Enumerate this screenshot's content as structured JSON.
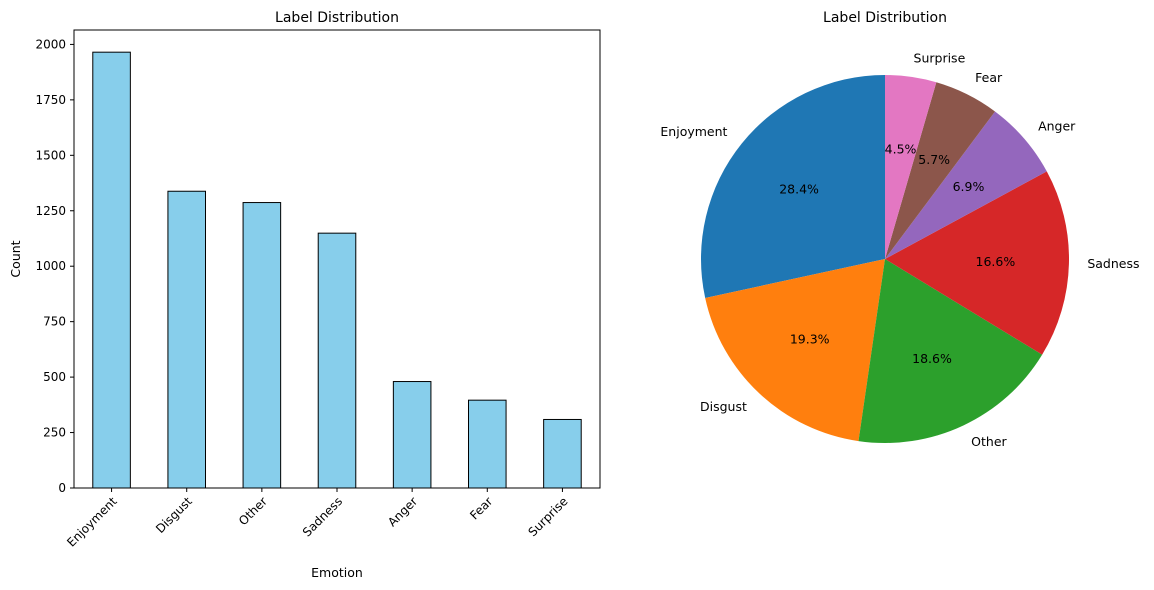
{
  "chart_data": [
    {
      "type": "bar",
      "title": "Label Distribution",
      "xlabel": "Emotion",
      "ylabel": "Count",
      "categories": [
        "Enjoyment",
        "Disgust",
        "Other",
        "Sadness",
        "Anger",
        "Fear",
        "Surprise"
      ],
      "values": [
        1965,
        1338,
        1287,
        1149,
        480,
        396,
        309
      ],
      "ylim": [
        0,
        2065
      ],
      "yticks": [
        0,
        250,
        500,
        750,
        1000,
        1250,
        1500,
        1750,
        2000
      ],
      "bar_color": "#87CEEB",
      "edge_color": "#000000",
      "grid": false
    },
    {
      "type": "pie",
      "title": "Label Distribution",
      "labels": [
        "Enjoyment",
        "Disgust",
        "Other",
        "Sadness",
        "Anger",
        "Fear",
        "Surprise"
      ],
      "percentages": [
        "28.4%",
        "19.3%",
        "18.6%",
        "16.6%",
        "6.9%",
        "5.7%",
        "4.5%"
      ],
      "values": [
        28.4,
        19.3,
        18.6,
        16.6,
        6.9,
        5.7,
        4.5
      ],
      "colors": [
        "#1f77b4",
        "#ff7f0e",
        "#2ca02c",
        "#d62728",
        "#9467bd",
        "#8c564b",
        "#e377c2"
      ],
      "start_angle": 90,
      "direction": "counterclockwise"
    }
  ]
}
